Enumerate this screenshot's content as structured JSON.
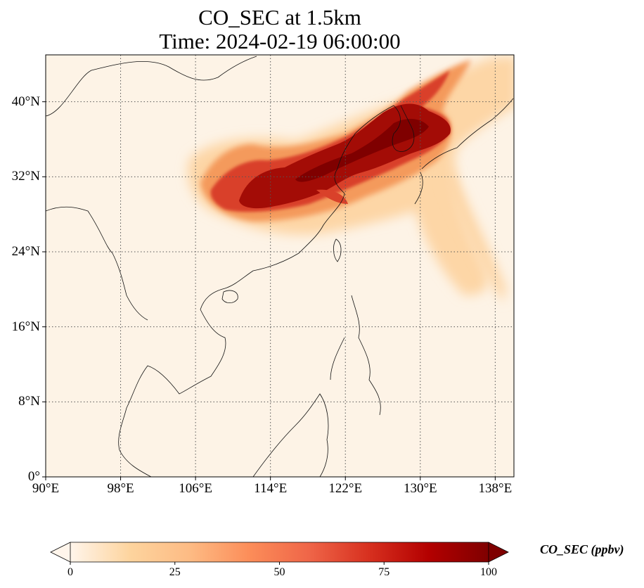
{
  "title": {
    "line1": "CO_SEC at 1.5km",
    "line2": "Time: 2024-02-19 06:00:00"
  },
  "map": {
    "projection": "PlateCarree",
    "lon_range": [
      90,
      140
    ],
    "lat_range": [
      0,
      45
    ],
    "gridlines": "dotted",
    "lon_ticks": [
      {
        "value": 90,
        "label": "90°E"
      },
      {
        "value": 98,
        "label": "98°E"
      },
      {
        "value": 106,
        "label": "106°E"
      },
      {
        "value": 114,
        "label": "114°E"
      },
      {
        "value": 122,
        "label": "122°E"
      },
      {
        "value": 130,
        "label": "130°E"
      },
      {
        "value": 138,
        "label": "138°E"
      }
    ],
    "lat_ticks": [
      {
        "value": 0,
        "label": "0°"
      },
      {
        "value": 8,
        "label": "8°N"
      },
      {
        "value": 16,
        "label": "16°N"
      },
      {
        "value": 24,
        "label": "24°N"
      },
      {
        "value": 32,
        "label": "32°N"
      },
      {
        "value": 40,
        "label": "40°N"
      }
    ],
    "background_color": "#fdf3e6",
    "plume_colors": [
      "#fdd6a6",
      "#f49a5c",
      "#d9412a",
      "#a30c06",
      "#7f0000"
    ]
  },
  "colorbar": {
    "label": "CO_SEC (ppbv)",
    "range": [
      0,
      100
    ],
    "extend": "both",
    "ticks": [
      {
        "value": 0,
        "label": "0"
      },
      {
        "value": 25,
        "label": "25"
      },
      {
        "value": 50,
        "label": "50"
      },
      {
        "value": 75,
        "label": "75"
      },
      {
        "value": 100,
        "label": "100"
      }
    ],
    "colors": [
      "#fff5eb",
      "#fdd49e",
      "#fdbb84",
      "#fc8d59",
      "#ef6548",
      "#d7301f",
      "#b30000",
      "#7f0000"
    ]
  }
}
